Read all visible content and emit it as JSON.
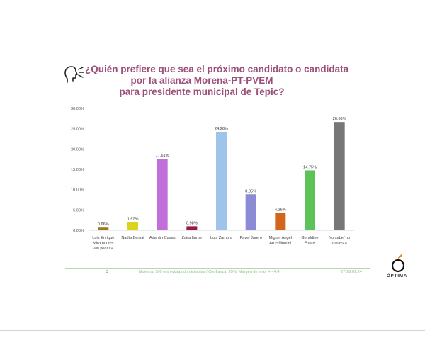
{
  "title_lines": [
    "¿Quién prefiere que sea el próximo candidato o candidata",
    "por la alianza Morena-PT-PVEM",
    "para presidente municipal de Tepic?"
  ],
  "colors": {
    "title": "#9c4f7a",
    "footer_text": "#8cbf87",
    "footer_line": "#b7d7ae"
  },
  "chart_data": {
    "type": "bar",
    "title": "¿Quién prefiere que sea el próximo candidato o candidata por la alianza Morena-PT-PVEM para presidente municipal de Tepic?",
    "xlabel": "",
    "ylabel": "",
    "ylim": [
      0,
      30
    ],
    "yticks": [
      "0.00%",
      "5.00%",
      "10.00%",
      "15.00%",
      "20.00%",
      "25.00%",
      "30.00%"
    ],
    "ytick_values": [
      0,
      5,
      10,
      15,
      20,
      25,
      30
    ],
    "grid": false,
    "legend": "none",
    "categories": [
      [
        "Luis Enrique",
        "Miramontes",
        "«el pecas»"
      ],
      [
        "Nadia Bernal"
      ],
      [
        "Adahán Casas"
      ],
      [
        "Zaira Iturbe"
      ],
      [
        "Luis Zamora"
      ],
      [
        "Pavel Jarero"
      ],
      [
        "Miguel Ángel",
        "Arce Montiel"
      ],
      [
        "Geraldine",
        "Ponce"
      ],
      [
        "No sabe/ no",
        "contesta"
      ]
    ],
    "values": [
      0.66,
      1.97,
      17.61,
      0.98,
      24.26,
      8.85,
      4.26,
      14.75,
      26.66
    ],
    "data_labels": [
      "0.66%",
      "1.97%",
      "17.61%",
      "0.98%",
      "24.26%",
      "8.85%",
      "4.26%",
      "14.75%",
      "26.66%"
    ],
    "bar_colors": [
      "#9b7d18",
      "#dcd41c",
      "#c06ed8",
      "#9a1a3c",
      "#9ec4ea",
      "#8b8bd6",
      "#d2661c",
      "#5ec258",
      "#777777"
    ]
  },
  "footer": {
    "page_number": "3",
    "note": "Muestra: 500 entrevistas domiciliarias / Confianza: 95%/ Margen de error + - 4.4",
    "date": "27-28.01.24"
  },
  "logo": {
    "name": "ÓPTIMA",
    "icon": "optima-logo-icon"
  },
  "head_icon": "speaking-head-icon"
}
